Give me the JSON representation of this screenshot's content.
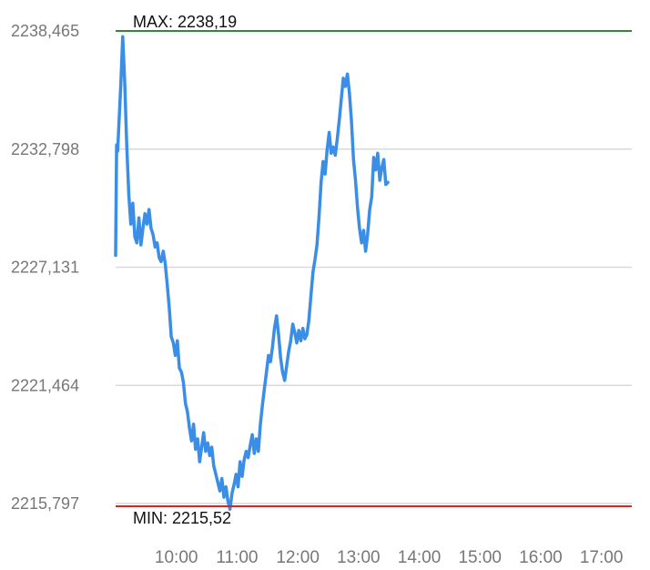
{
  "chart_data": {
    "type": "line",
    "title": "",
    "xlabel": "",
    "ylabel": "",
    "ylim": [
      2215.797,
      2238.465
    ],
    "y_ticks": [
      "2238,465",
      "2232,798",
      "2227,131",
      "2221,464",
      "2215,797"
    ],
    "y_tick_values": [
      2238.465,
      2232.798,
      2227.131,
      2221.464,
      2215.797
    ],
    "x_ticks": [
      "10:00",
      "11:00",
      "12:00",
      "13:00",
      "14:00",
      "15:00",
      "16:00",
      "17:00"
    ],
    "x_tick_values": [
      "10:00",
      "11:00",
      "12:00",
      "13:00",
      "14:00",
      "15:00",
      "16:00",
      "17:00"
    ],
    "xlim": [
      "09:00",
      "17:30"
    ],
    "grid": true,
    "max_line": {
      "label": "MAX: 2238,19",
      "value": 2238.19,
      "color": "#2e8b2e"
    },
    "min_line": {
      "label": "MIN: 2215,52",
      "value": 2215.52,
      "color": "#d62728"
    },
    "series": [
      {
        "color": "#3a8ee6",
        "points": [
          [
            "09:00",
            2227.7
          ],
          [
            "09:01",
            2233.0
          ],
          [
            "09:02",
            2232.7
          ],
          [
            "09:03",
            2233.7
          ],
          [
            "09:05",
            2235.8
          ],
          [
            "09:07",
            2238.19
          ],
          [
            "09:09",
            2236.0
          ],
          [
            "09:11",
            2233.0
          ],
          [
            "09:13",
            2230.6
          ],
          [
            "09:15",
            2229.2
          ],
          [
            "09:17",
            2230.2
          ],
          [
            "09:19",
            2228.6
          ],
          [
            "09:21",
            2228.3
          ],
          [
            "09:23",
            2229.5
          ],
          [
            "09:25",
            2228.2
          ],
          [
            "09:27",
            2229.0
          ],
          [
            "09:29",
            2229.7
          ],
          [
            "09:31",
            2229.2
          ],
          [
            "09:33",
            2229.9
          ],
          [
            "09:35",
            2229.0
          ],
          [
            "09:37",
            2228.7
          ],
          [
            "09:39",
            2228.1
          ],
          [
            "09:41",
            2228.3
          ],
          [
            "09:43",
            2227.6
          ],
          [
            "09:45",
            2227.4
          ],
          [
            "09:47",
            2227.9
          ],
          [
            "09:49",
            2227.3
          ],
          [
            "09:51",
            2226.3
          ],
          [
            "09:53",
            2225.2
          ],
          [
            "09:55",
            2223.8
          ],
          [
            "09:57",
            2223.5
          ],
          [
            "09:59",
            2222.9
          ],
          [
            "10:01",
            2223.6
          ],
          [
            "10:03",
            2222.3
          ],
          [
            "10:05",
            2222.1
          ],
          [
            "10:07",
            2221.6
          ],
          [
            "10:09",
            2220.6
          ],
          [
            "10:11",
            2220.2
          ],
          [
            "10:13",
            2219.4
          ],
          [
            "10:15",
            2218.8
          ],
          [
            "10:17",
            2219.6
          ],
          [
            "10:19",
            2218.4
          ],
          [
            "10:21",
            2218.9
          ],
          [
            "10:23",
            2217.8
          ],
          [
            "10:25",
            2218.5
          ],
          [
            "10:27",
            2219.2
          ],
          [
            "10:29",
            2218.3
          ],
          [
            "10:31",
            2218.7
          ],
          [
            "10:33",
            2218.1
          ],
          [
            "10:35",
            2218.5
          ],
          [
            "10:37",
            2217.6
          ],
          [
            "10:39",
            2217.2
          ],
          [
            "10:41",
            2216.8
          ],
          [
            "10:43",
            2216.4
          ],
          [
            "10:45",
            2217.0
          ],
          [
            "10:47",
            2216.1
          ],
          [
            "10:49",
            2216.6
          ],
          [
            "10:51",
            2215.9
          ],
          [
            "10:53",
            2215.52
          ],
          [
            "10:55",
            2216.3
          ],
          [
            "10:57",
            2216.7
          ],
          [
            "10:59",
            2217.2
          ],
          [
            "11:01",
            2216.6
          ],
          [
            "11:03",
            2217.8
          ],
          [
            "11:05",
            2217.1
          ],
          [
            "11:07",
            2217.9
          ],
          [
            "11:09",
            2218.3
          ],
          [
            "11:11",
            2218.0
          ],
          [
            "11:13",
            2218.6
          ],
          [
            "11:15",
            2219.1
          ],
          [
            "11:17",
            2218.2
          ],
          [
            "11:19",
            2218.9
          ],
          [
            "11:21",
            2218.3
          ],
          [
            "11:23",
            2219.6
          ],
          [
            "11:25",
            2220.5
          ],
          [
            "11:27",
            2221.3
          ],
          [
            "11:29",
            2222.1
          ],
          [
            "11:31",
            2222.9
          ],
          [
            "11:33",
            2222.6
          ],
          [
            "11:35",
            2223.3
          ],
          [
            "11:37",
            2224.2
          ],
          [
            "11:39",
            2224.8
          ],
          [
            "11:41",
            2223.9
          ],
          [
            "11:43",
            2222.8
          ],
          [
            "11:45",
            2222.1
          ],
          [
            "11:47",
            2221.7
          ],
          [
            "11:49",
            2222.4
          ],
          [
            "11:51",
            2223.1
          ],
          [
            "11:53",
            2223.6
          ],
          [
            "11:55",
            2224.4
          ],
          [
            "11:57",
            2224.0
          ],
          [
            "11:59",
            2223.5
          ],
          [
            "12:01",
            2224.1
          ],
          [
            "12:03",
            2223.6
          ],
          [
            "12:05",
            2224.2
          ],
          [
            "12:07",
            2223.7
          ],
          [
            "12:09",
            2223.9
          ],
          [
            "12:11",
            2224.6
          ],
          [
            "12:13",
            2225.8
          ],
          [
            "12:15",
            2226.9
          ],
          [
            "12:17",
            2227.5
          ],
          [
            "12:19",
            2228.2
          ],
          [
            "12:21",
            2229.6
          ],
          [
            "12:23",
            2231.2
          ],
          [
            "12:25",
            2232.2
          ],
          [
            "12:27",
            2231.6
          ],
          [
            "12:29",
            2232.8
          ],
          [
            "12:31",
            2233.6
          ],
          [
            "12:33",
            2232.6
          ],
          [
            "12:35",
            2232.9
          ],
          [
            "12:37",
            2232.5
          ],
          [
            "12:39",
            2233.3
          ],
          [
            "12:41",
            2234.2
          ],
          [
            "12:43",
            2235.2
          ],
          [
            "12:45",
            2236.2
          ],
          [
            "12:47",
            2235.8
          ],
          [
            "12:49",
            2236.4
          ],
          [
            "12:51",
            2235.5
          ],
          [
            "12:53",
            2234.2
          ],
          [
            "12:55",
            2232.3
          ],
          [
            "12:57",
            2231.3
          ],
          [
            "12:59",
            2230.0
          ],
          [
            "13:01",
            2229.0
          ],
          [
            "13:03",
            2228.3
          ],
          [
            "13:05",
            2228.9
          ],
          [
            "13:07",
            2227.9
          ],
          [
            "13:09",
            2228.7
          ],
          [
            "13:11",
            2229.9
          ],
          [
            "13:13",
            2230.5
          ],
          [
            "13:15",
            2232.4
          ],
          [
            "13:17",
            2231.8
          ],
          [
            "13:19",
            2232.6
          ],
          [
            "13:21",
            2231.3
          ],
          [
            "13:23",
            2231.9
          ],
          [
            "13:25",
            2232.3
          ],
          [
            "13:27",
            2231.1
          ],
          [
            "13:29",
            2231.2
          ]
        ]
      }
    ]
  }
}
